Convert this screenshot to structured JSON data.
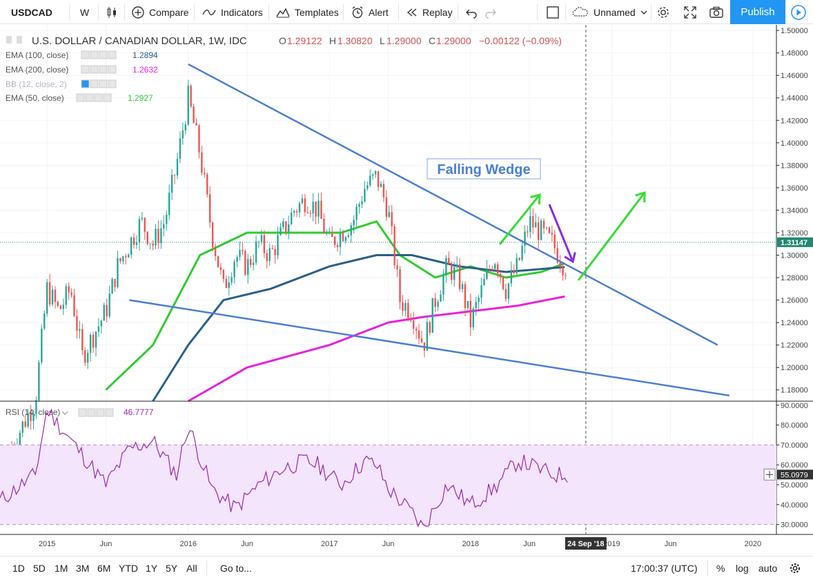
{
  "toolbar": {
    "symbol": "USDCAD",
    "interval": "W",
    "compare": "Compare",
    "indicators": "Indicators",
    "templates": "Templates",
    "alert": "Alert",
    "replay": "Replay",
    "layout_name": "Unnamed",
    "publish": "Publish"
  },
  "legend": {
    "title": "U.S. DOLLAR / CANADIAN DOLLAR, 1W, IDC",
    "o_label": "O",
    "o": "1.29122",
    "h_label": "H",
    "h": "1.30820",
    "l_label": "L",
    "l": "1.29000",
    "c_label": "C",
    "c": "1.29000",
    "change": "−0.00122 (−0.09%)",
    "studies": [
      {
        "name": "EMA (100, close)",
        "value": "1.2894",
        "color": "#2a5f8a"
      },
      {
        "name": "EMA (200, close)",
        "value": "1.2632",
        "color": "#e91ee0"
      },
      {
        "name": "BB (12, close, 2)",
        "value": "",
        "color": "#9aa5b1"
      },
      {
        "name": "EMA (50, close)",
        "value": "1.2927",
        "color": "#2ecc2e"
      }
    ]
  },
  "annotation": {
    "text": "Falling Wedge",
    "color": "#4a7fd0"
  },
  "price_axis": {
    "ticks": [
      "1.50000",
      "1.48000",
      "1.46000",
      "1.44000",
      "1.42000",
      "1.40000",
      "1.38000",
      "1.36000",
      "1.34000",
      "1.32000",
      "1.30000",
      "1.28000",
      "1.26000",
      "1.24000",
      "1.22000",
      "1.20000",
      "1.18000"
    ],
    "last_price": "1.31147",
    "last_price_color": "#1f8a70"
  },
  "rsi": {
    "label": "RSI (14, close)",
    "value": "46.7777",
    "ticks": [
      "90.0000",
      "80.0000",
      "70.0000",
      "60.0000",
      "50.0000",
      "40.0000",
      "30.0000"
    ],
    "crosshair_value": "55.0979",
    "color": "#9c27b0"
  },
  "time_axis": {
    "labels": [
      "2015",
      "Jun",
      "2016",
      "Jun",
      "2017",
      "Jun",
      "2018",
      "Jun",
      "2019",
      "Jun",
      "2020"
    ],
    "crosshair_date": "24 Sep '18"
  },
  "bottom": {
    "ranges": [
      "1D",
      "5D",
      "1M",
      "3M",
      "6M",
      "YTD",
      "1Y",
      "5Y",
      "All"
    ],
    "goto": "Go to...",
    "clock": "17:00:37 (UTC)",
    "percent": "%",
    "log": "log",
    "auto": "auto"
  },
  "chart_data": {
    "type": "candlestick",
    "title": "U.S. DOLLAR / CANADIAN DOLLAR, 1W, IDC",
    "x_start": "2014-09",
    "x_end": "2020-03",
    "ylim": [
      1.17,
      1.505
    ],
    "close_series": {
      "dates": [
        "2014-10",
        "2014-12",
        "2015-01",
        "2015-02",
        "2015-03",
        "2015-04",
        "2015-05",
        "2015-06",
        "2015-07",
        "2015-08",
        "2015-09",
        "2015-10",
        "2015-11",
        "2015-12",
        "2016-01",
        "2016-02",
        "2016-03",
        "2016-04",
        "2016-05",
        "2016-06",
        "2016-07",
        "2016-08",
        "2016-09",
        "2016-10",
        "2016-11",
        "2016-12",
        "2017-01",
        "2017-02",
        "2017-03",
        "2017-04",
        "2017-05",
        "2017-06",
        "2017-07",
        "2017-08",
        "2017-09",
        "2017-10",
        "2017-11",
        "2017-12",
        "2018-01",
        "2018-02",
        "2018-03",
        "2018-04",
        "2018-05",
        "2018-06",
        "2018-07",
        "2018-08",
        "2018-09"
      ],
      "values": [
        1.13,
        1.17,
        1.27,
        1.25,
        1.27,
        1.21,
        1.23,
        1.25,
        1.29,
        1.31,
        1.33,
        1.31,
        1.33,
        1.38,
        1.44,
        1.39,
        1.32,
        1.27,
        1.3,
        1.29,
        1.31,
        1.3,
        1.32,
        1.34,
        1.35,
        1.34,
        1.31,
        1.32,
        1.33,
        1.36,
        1.37,
        1.34,
        1.26,
        1.25,
        1.22,
        1.26,
        1.29,
        1.28,
        1.24,
        1.27,
        1.3,
        1.27,
        1.29,
        1.33,
        1.32,
        1.31,
        1.29
      ]
    },
    "series": [
      {
        "name": "EMA (50, close)",
        "dates": [
          "2015-06",
          "2015-10",
          "2016-02",
          "2016-06",
          "2016-10",
          "2017-02",
          "2017-05",
          "2017-07",
          "2017-10",
          "2018-01",
          "2018-04",
          "2018-07",
          "2018-09"
        ],
        "values": [
          1.18,
          1.22,
          1.3,
          1.32,
          1.32,
          1.32,
          1.33,
          1.3,
          1.28,
          1.29,
          1.28,
          1.285,
          1.2927
        ]
      },
      {
        "name": "EMA (100, close)",
        "dates": [
          "2015-10",
          "2016-01",
          "2016-04",
          "2016-08",
          "2017-01",
          "2017-05",
          "2017-08",
          "2017-12",
          "2018-04",
          "2018-09"
        ],
        "values": [
          1.17,
          1.22,
          1.26,
          1.27,
          1.29,
          1.3,
          1.3,
          1.29,
          1.285,
          1.2894
        ]
      },
      {
        "name": "EMA (200, close)",
        "dates": [
          "2016-01",
          "2016-06",
          "2017-01",
          "2017-06",
          "2017-09",
          "2018-01",
          "2018-05",
          "2018-09"
        ],
        "values": [
          1.17,
          1.2,
          1.22,
          1.24,
          1.245,
          1.25,
          1.255,
          1.2632
        ]
      }
    ],
    "trendlines": [
      {
        "from": [
          "2016-01",
          1.47
        ],
        "to": [
          "2019-10",
          1.22
        ]
      },
      {
        "from": [
          "2015-08",
          1.26
        ],
        "to": [
          "2019-11",
          1.175
        ]
      }
    ],
    "rsi": {
      "ylim": [
        25,
        92
      ],
      "overbought": 70,
      "oversold": 30,
      "dates": [
        "2014-09",
        "2014-12",
        "2015-01",
        "2015-02",
        "2015-04",
        "2015-06",
        "2015-08",
        "2015-10",
        "2015-12",
        "2016-01",
        "2016-03",
        "2016-05",
        "2016-07",
        "2016-09",
        "2016-11",
        "2016-12",
        "2017-02",
        "2017-04",
        "2017-05",
        "2017-06",
        "2017-08",
        "2017-09",
        "2017-11",
        "2018-01",
        "2018-03",
        "2018-05",
        "2018-06",
        "2018-08",
        "2018-09"
      ],
      "values": [
        42,
        55,
        88,
        80,
        65,
        50,
        68,
        72,
        55,
        80,
        48,
        38,
        50,
        58,
        62,
        60,
        50,
        62,
        60,
        48,
        36,
        28,
        50,
        40,
        48,
        62,
        60,
        55,
        55
      ]
    }
  }
}
